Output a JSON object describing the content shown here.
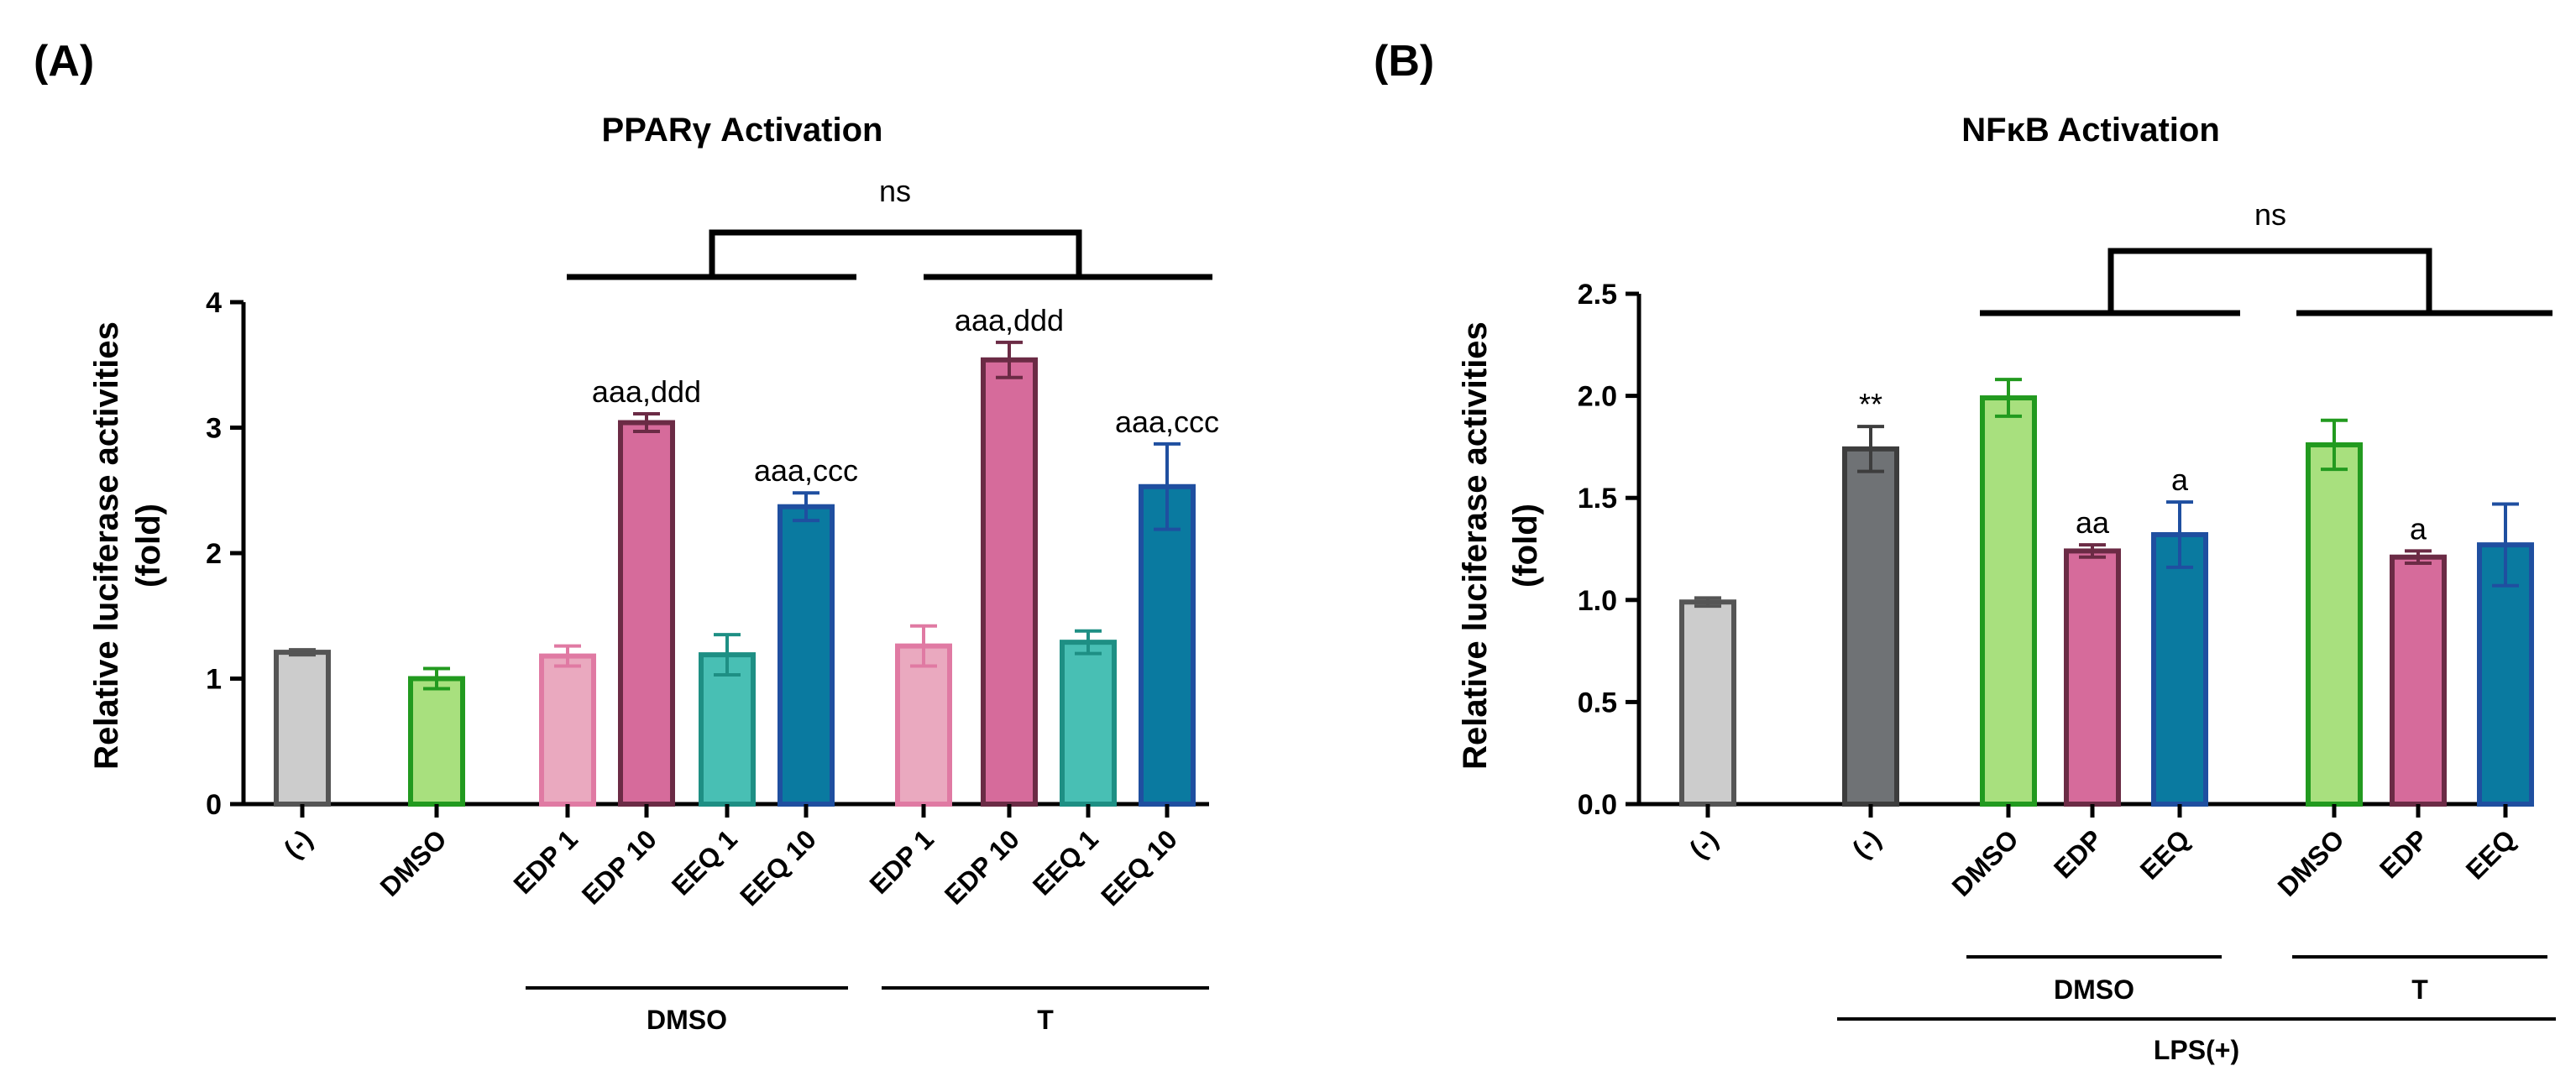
{
  "chart_data": [
    {
      "panel_label": "(A)",
      "type": "bar",
      "title": "PPARγ Activation",
      "ylabel_line1": "Relative luciferase activities",
      "ylabel_line2": "(fold)",
      "ylim": [
        0,
        4
      ],
      "yticks": [
        0,
        1,
        2,
        3,
        4
      ],
      "ytick_labels": [
        "0",
        "1",
        "2",
        "3",
        "4"
      ],
      "categories": [
        "(-)",
        "DMSO",
        "EDP 1",
        "EDP 10",
        "EEQ 1",
        "EEQ 10",
        "EDP 1",
        "EDP 10",
        "EEQ 1",
        "EEQ 10"
      ],
      "values": [
        1.21,
        1.0,
        1.18,
        3.04,
        1.19,
        2.37,
        1.26,
        3.54,
        1.29,
        2.53
      ],
      "errors": [
        0.02,
        0.08,
        0.08,
        0.07,
        0.16,
        0.11,
        0.16,
        0.14,
        0.09,
        0.34
      ],
      "fills": [
        "#cccccc",
        "#a8e07e",
        "#eaa9bf",
        "#d66b9b",
        "#48bfb4",
        "#0a7aa0",
        "#eaa9bf",
        "#d66b9b",
        "#48bfb4",
        "#0a7aa0"
      ],
      "strokes": [
        "#555555",
        "#229a1f",
        "#e07aa3",
        "#6b2b45",
        "#1e8f84",
        "#1f4fa0",
        "#e07aa3",
        "#6b2b45",
        "#1e8f84",
        "#1f4fa0"
      ],
      "annotations": [
        "",
        "",
        "",
        "aaa,ddd",
        "",
        "aaa,ccc",
        "",
        "aaa,ddd",
        "",
        "aaa,ccc"
      ],
      "groups": [
        {
          "label": "DMSO",
          "from": 2,
          "to": 5
        },
        {
          "label": "T",
          "from": 6,
          "to": 9
        }
      ],
      "significance": "ns"
    },
    {
      "panel_label": "(B)",
      "type": "bar",
      "title": "NFκB Activation",
      "ylabel_line1": "Relative luciferase activities",
      "ylabel_line2": "(fold)",
      "ylim": [
        0,
        2.5
      ],
      "yticks": [
        0,
        0.5,
        1.0,
        1.5,
        2.0,
        2.5
      ],
      "ytick_labels": [
        "0.0",
        "0.5",
        "1.0",
        "1.5",
        "2.0",
        "2.5"
      ],
      "categories": [
        "(-)",
        "(-)",
        "DMSO",
        "EDP",
        "EEQ",
        "DMSO",
        "EDP",
        "EEQ"
      ],
      "values": [
        0.99,
        1.74,
        1.99,
        1.24,
        1.32,
        1.76,
        1.21,
        1.27
      ],
      "errors": [
        0.02,
        0.11,
        0.09,
        0.03,
        0.16,
        0.12,
        0.03,
        0.2
      ],
      "fills": [
        "#cccccc",
        "#6f7275",
        "#a8e07e",
        "#d66b9b",
        "#0a7aa0",
        "#a8e07e",
        "#d66b9b",
        "#0a7aa0"
      ],
      "strokes": [
        "#555555",
        "#3d3d3d",
        "#229a1f",
        "#6b2b45",
        "#1f4fa0",
        "#229a1f",
        "#6b2b45",
        "#1f4fa0"
      ],
      "annotations": [
        "",
        "**",
        "",
        "aa",
        "a",
        "",
        "a",
        ""
      ],
      "groups": [
        {
          "label": "DMSO",
          "from": 2,
          "to": 4
        },
        {
          "label": "T",
          "from": 5,
          "to": 7
        }
      ],
      "outer_group": {
        "label": "LPS(+)",
        "from": 1,
        "to": 7
      },
      "significance": "ns"
    }
  ]
}
